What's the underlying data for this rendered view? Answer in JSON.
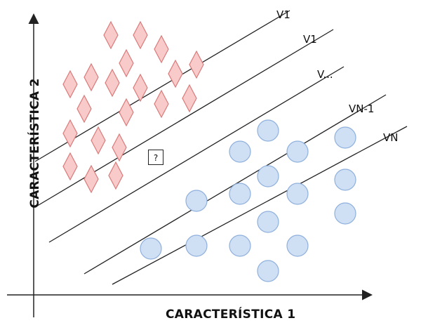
{
  "xlabel": "CARACTERÍSTICA 1",
  "ylabel": "CARACTERÍSTICA 2",
  "unknown_marker": "?",
  "line_labels": [
    "V1",
    "V1",
    "V...",
    "VN-1",
    "VN"
  ],
  "colors": {
    "diamond_fill": "#f8caca",
    "diamond_stroke": "#d97a7a",
    "circle_fill": "#cfe0f5",
    "circle_stroke": "#8fb0dc",
    "line": "#222222"
  }
}
